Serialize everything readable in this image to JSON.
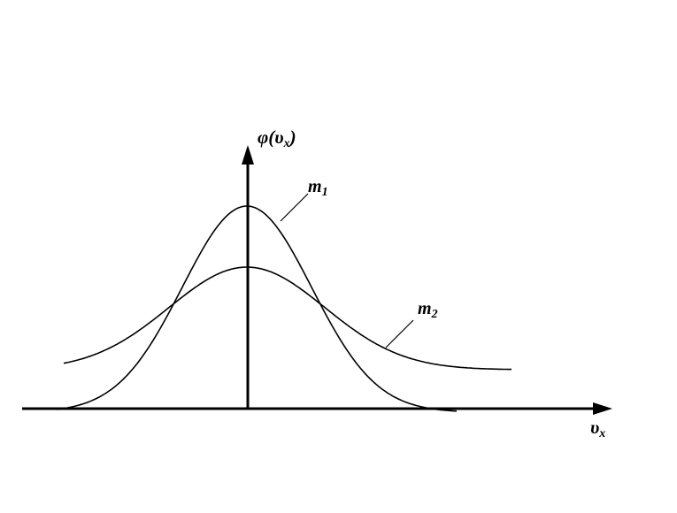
{
  "diagram": {
    "y_axis_label": {
      "func": "φ(υ",
      "sub": "x",
      "close": ")"
    },
    "x_axis_label": {
      "base": "υ",
      "sub": "x"
    },
    "curves": [
      {
        "name": "m",
        "sub": "1",
        "shape": "narrow tall bell curve"
      },
      {
        "name": "m",
        "sub": "2",
        "shape": "wide low bell curve"
      }
    ],
    "colors": {
      "ink": "#000000",
      "background": "#ffffff"
    }
  }
}
